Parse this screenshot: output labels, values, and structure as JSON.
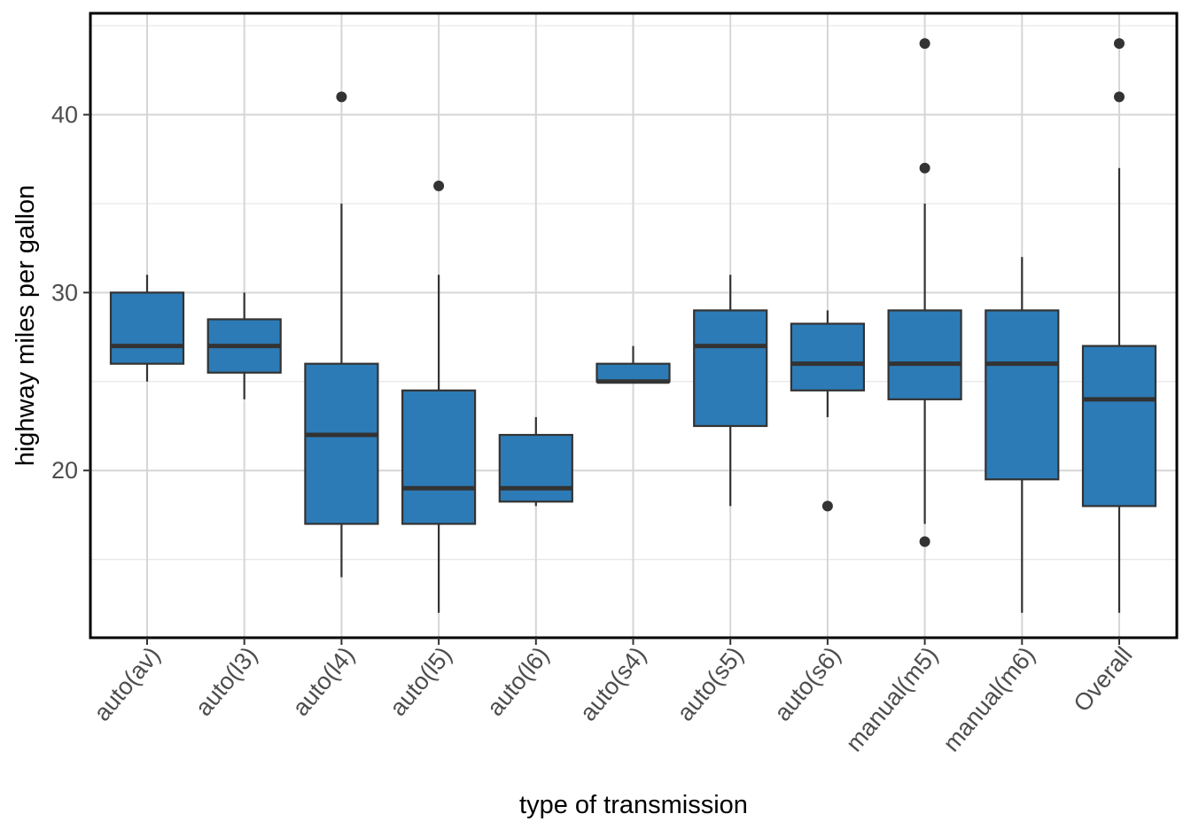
{
  "chart_data": {
    "type": "boxplot",
    "title": "",
    "xlabel": "type of transmission",
    "ylabel": "highway miles per gallon",
    "ylim": [
      10.6,
      45.7
    ],
    "y_ticks": [
      20,
      30,
      40
    ],
    "y_tick_labels": [
      "20",
      "30",
      "40"
    ],
    "grid": true,
    "categories": [
      "auto(av)",
      "auto(l3)",
      "auto(l4)",
      "auto(l5)",
      "auto(l6)",
      "auto(s4)",
      "auto(s5)",
      "auto(s6)",
      "manual(m5)",
      "manual(m6)",
      "Overall"
    ],
    "box_fill": "#2C7BB6",
    "line_color": "#333333",
    "boxes": [
      {
        "category": "auto(av)",
        "whisker_low": 25,
        "q1": 26,
        "median": 27,
        "q3": 30,
        "whisker_high": 31,
        "outliers": []
      },
      {
        "category": "auto(l3)",
        "whisker_low": 24,
        "q1": 25.5,
        "median": 27,
        "q3": 28.5,
        "whisker_high": 30,
        "outliers": []
      },
      {
        "category": "auto(l4)",
        "whisker_low": 14,
        "q1": 17,
        "median": 22,
        "q3": 26,
        "whisker_high": 35,
        "outliers": [
          41
        ]
      },
      {
        "category": "auto(l5)",
        "whisker_low": 12,
        "q1": 17,
        "median": 19,
        "q3": 24.5,
        "whisker_high": 31,
        "outliers": [
          36
        ]
      },
      {
        "category": "auto(l6)",
        "whisker_low": 18,
        "q1": 18.25,
        "median": 19,
        "q3": 22,
        "whisker_high": 23,
        "outliers": []
      },
      {
        "category": "auto(s4)",
        "whisker_low": 25,
        "q1": 25,
        "median": 25,
        "q3": 26,
        "whisker_high": 27,
        "outliers": []
      },
      {
        "category": "auto(s5)",
        "whisker_low": 18,
        "q1": 22.5,
        "median": 27,
        "q3": 29,
        "whisker_high": 31,
        "outliers": []
      },
      {
        "category": "auto(s6)",
        "whisker_low": 23,
        "q1": 24.5,
        "median": 26,
        "q3": 28.25,
        "whisker_high": 29,
        "outliers": [
          18
        ]
      },
      {
        "category": "manual(m5)",
        "whisker_low": 17,
        "q1": 24,
        "median": 26,
        "q3": 29,
        "whisker_high": 35,
        "outliers": [
          16,
          37,
          44
        ]
      },
      {
        "category": "manual(m6)",
        "whisker_low": 12,
        "q1": 19.5,
        "median": 26,
        "q3": 29,
        "whisker_high": 32,
        "outliers": []
      },
      {
        "category": "Overall",
        "whisker_low": 12,
        "q1": 18,
        "median": 24,
        "q3": 27,
        "whisker_high": 37,
        "outliers": [
          41,
          44
        ]
      }
    ]
  }
}
